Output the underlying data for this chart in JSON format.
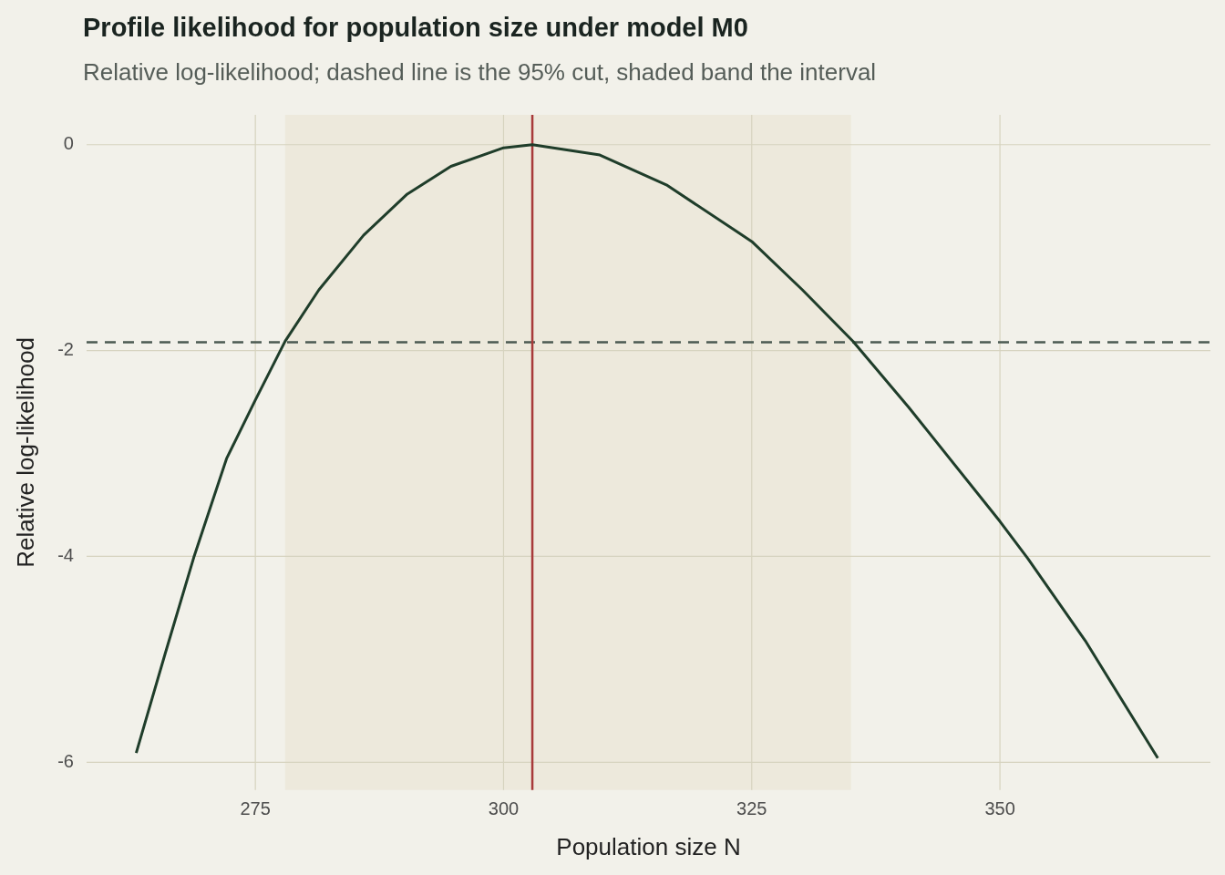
{
  "chart_data": {
    "type": "line",
    "title": "Profile likelihood for population size under model M0",
    "subtitle": "Relative log-likelihood; dashed line is the 95% cut, shaded band the interval",
    "xlabel": "Population size N",
    "ylabel": "Relative log-likelihood",
    "series": [
      {
        "color": "#1f3d2a",
        "x": [
          263.0,
          265.9,
          268.8,
          272.1,
          275.0,
          278.0,
          281.4,
          285.9,
          290.3,
          294.7,
          300.0,
          302.9,
          309.7,
          316.4,
          325.0,
          330.1,
          335.2,
          340.8,
          350.0,
          352.8,
          358.6,
          365.9
        ],
        "values": [
          -5.91,
          -4.95,
          -4.01,
          -3.05,
          -2.48,
          -1.91,
          -1.41,
          -0.88,
          -0.48,
          -0.21,
          -0.03,
          0,
          -0.1,
          -0.39,
          -0.94,
          -1.41,
          -1.91,
          -2.55,
          -3.66,
          -4.02,
          -4.82,
          -5.96
        ]
      }
    ],
    "xlim": [
      258,
      371.2
    ],
    "ylim": [
      -6.27,
      0.29
    ],
    "xticks": [
      275,
      300,
      325,
      350
    ],
    "yticks": [
      -6,
      -4,
      -2,
      0
    ],
    "ref_lines": [
      {
        "axis": "y",
        "value": -1.92,
        "label": null,
        "color": "#4b5a52",
        "line_style": "dashed"
      },
      {
        "axis": "x",
        "value": 302.9,
        "label": null,
        "color": "#a83a3a",
        "line_style": "solid"
      }
    ],
    "bands": [
      {
        "axis": "x",
        "from": 278,
        "to": 335,
        "label": null,
        "color": "#ede9dc"
      }
    ],
    "grid": true,
    "legend": false,
    "marker": "none",
    "line_style": "solid"
  }
}
